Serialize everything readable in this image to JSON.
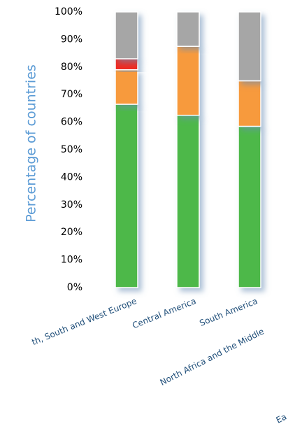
{
  "chart_data": {
    "type": "stacked-bar",
    "y_label": "Percentage of countries",
    "categories": [
      "th, South and West Europe",
      "Central America",
      "South America",
      "North Africa and the Middle",
      "Ea"
    ],
    "series": [
      {
        "color": "#4db848",
        "values": [
          66.5,
          62.5,
          58.5,
          null,
          null
        ]
      },
      {
        "color": "#f79a3c",
        "values": [
          12.5,
          25,
          16.5,
          null,
          null
        ]
      },
      {
        "color": "#ee2b24",
        "values": [
          4,
          0,
          0,
          null,
          null
        ]
      },
      {
        "color": "#a6a6a6",
        "values": [
          17,
          12.5,
          25,
          null,
          null
        ]
      }
    ],
    "ylim": [
      0,
      100
    ],
    "yticks": [
      {
        "value": 0,
        "label": "0%"
      },
      {
        "value": 10,
        "label": "10%"
      },
      {
        "value": 20,
        "label": "20%"
      },
      {
        "value": 30,
        "label": "30%"
      },
      {
        "value": 40,
        "label": "40%"
      },
      {
        "value": 50,
        "label": "50%"
      },
      {
        "value": 60,
        "label": "60%"
      },
      {
        "value": 70,
        "label": "70%"
      },
      {
        "value": 80,
        "label": "80%"
      },
      {
        "value": 90,
        "label": "90%"
      },
      {
        "value": 100,
        "label": "100%"
      }
    ]
  }
}
